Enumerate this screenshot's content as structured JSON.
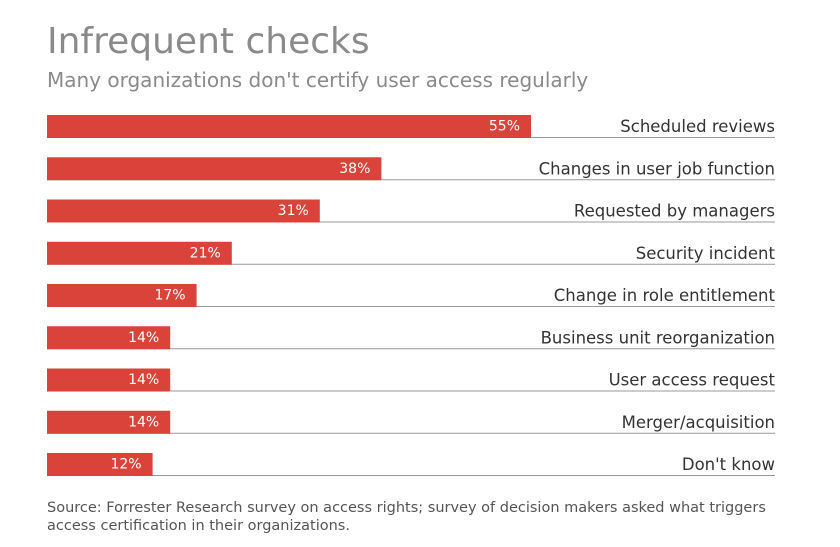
{
  "title": "Infrequent checks",
  "subtitle": "Many organizations don't certify user access regularly",
  "source": "Source: Forrester Research survey on access rights; survey of decision makers asked what triggers access certification in their organizations.",
  "colors": {
    "bar": "#d9433a",
    "value_label": "#ffffff",
    "category_label": "#333333",
    "divider": "#999999"
  },
  "chart_data": {
    "type": "bar",
    "orientation": "horizontal",
    "title": "Infrequent checks",
    "subtitle": "Many organizations don't certify user access regularly",
    "categories": [
      "Scheduled reviews",
      "Changes in user job function",
      "Requested by managers",
      "Security incident",
      "Change in role entitlement",
      "Business unit reorganization",
      "User access request",
      "Merger/acquisition",
      "Don't know"
    ],
    "values": [
      55,
      38,
      31,
      21,
      17,
      14,
      14,
      14,
      12
    ],
    "value_labels": [
      "55%",
      "38%",
      "31%",
      "21%",
      "17%",
      "14%",
      "14%",
      "14%",
      "12%"
    ],
    "unit": "%",
    "xlim": [
      0,
      55
    ],
    "grid": false,
    "legend": "none"
  }
}
